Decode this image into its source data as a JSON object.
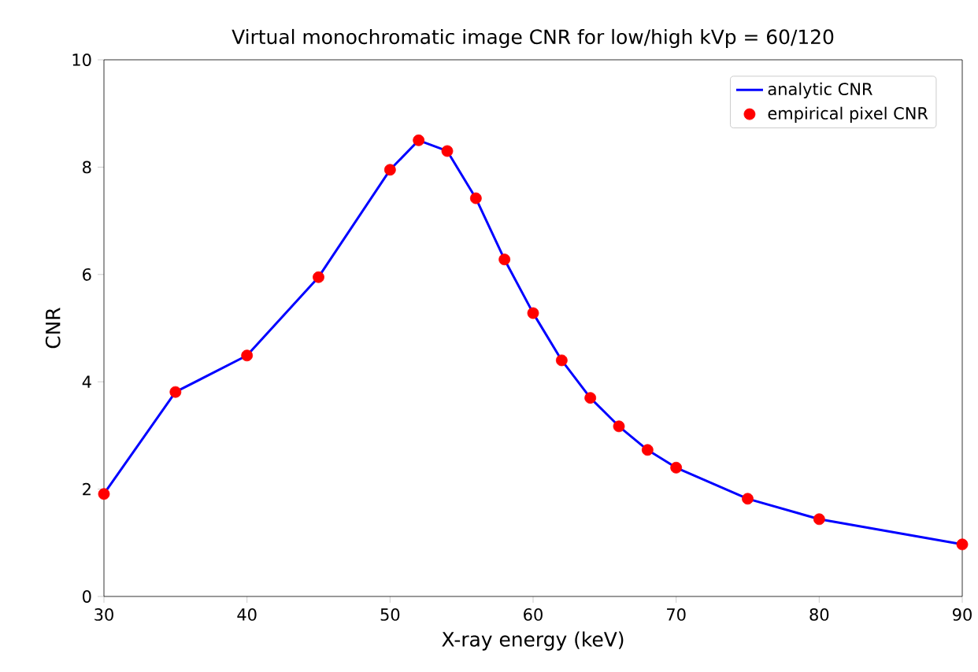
{
  "chart_data": {
    "type": "line",
    "title": "Virtual monochromatic image CNR for low/high kVp = 60/120",
    "xlabel": "X-ray energy (keV)",
    "ylabel": "CNR",
    "x": [
      30,
      35,
      40,
      45,
      50,
      52,
      54,
      56,
      58,
      60,
      62,
      64,
      66,
      68,
      70,
      75,
      80,
      90
    ],
    "series": [
      {
        "name": "analytic CNR",
        "color": "#0000ff",
        "marker": "none",
        "values": [
          1.91,
          3.81,
          4.49,
          5.95,
          7.95,
          8.5,
          8.3,
          7.42,
          6.28,
          5.28,
          4.4,
          3.7,
          3.17,
          2.73,
          2.4,
          1.82,
          1.44,
          0.97
        ]
      },
      {
        "name": "empirical pixel CNR",
        "type": "scatter",
        "color": "#ff0000",
        "marker": "circle",
        "values": [
          1.91,
          3.81,
          4.49,
          5.95,
          7.95,
          8.5,
          8.3,
          7.42,
          6.28,
          5.28,
          4.4,
          3.7,
          3.17,
          2.73,
          2.4,
          1.82,
          1.44,
          0.97
        ]
      }
    ],
    "xlim": [
      30,
      90
    ],
    "xticks": [
      30,
      40,
      50,
      60,
      70,
      80,
      90
    ],
    "ylim": [
      0,
      10
    ],
    "yticks": [
      0,
      2,
      4,
      6,
      8,
      10
    ],
    "grid": false,
    "legend": "top right"
  }
}
